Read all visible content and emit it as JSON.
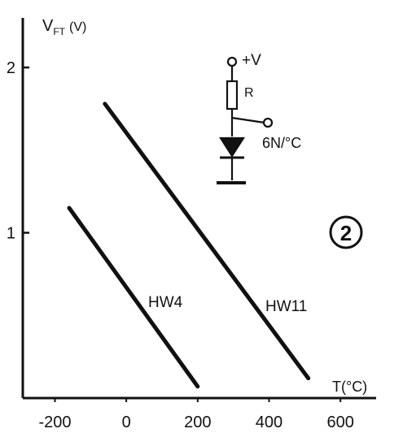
{
  "chart_data": {
    "type": "line",
    "title": "",
    "xlabel": "T(°C)",
    "ylabel": "V",
    "ylabel_sub": "FT",
    "ylabel_unit": "(V)",
    "xlim": [
      -290,
      700
    ],
    "ylim": [
      0,
      2.3
    ],
    "x_ticks": [
      {
        "value": -200,
        "label": "-200"
      },
      {
        "value": 0,
        "label": "0"
      },
      {
        "value": 200,
        "label": "200"
      },
      {
        "value": 400,
        "label": "400"
      },
      {
        "value": 600,
        "label": "600"
      }
    ],
    "y_ticks": [
      {
        "value": 1,
        "label": "1"
      },
      {
        "value": 2,
        "label": "2"
      }
    ],
    "grid": false,
    "series": [
      {
        "name": "HW4",
        "x": [
          -160,
          200
        ],
        "y": [
          1.15,
          0.07
        ]
      },
      {
        "name": "HW11",
        "x": [
          -60,
          510
        ],
        "y": [
          1.78,
          0.12
        ]
      }
    ],
    "annotations": {
      "badge": "2",
      "circuit": {
        "supply_label": "+V",
        "resistor_label": "R",
        "output_label": "6N/°C"
      }
    },
    "colors": {
      "ink": "#111111",
      "background": "#ffffff"
    }
  }
}
